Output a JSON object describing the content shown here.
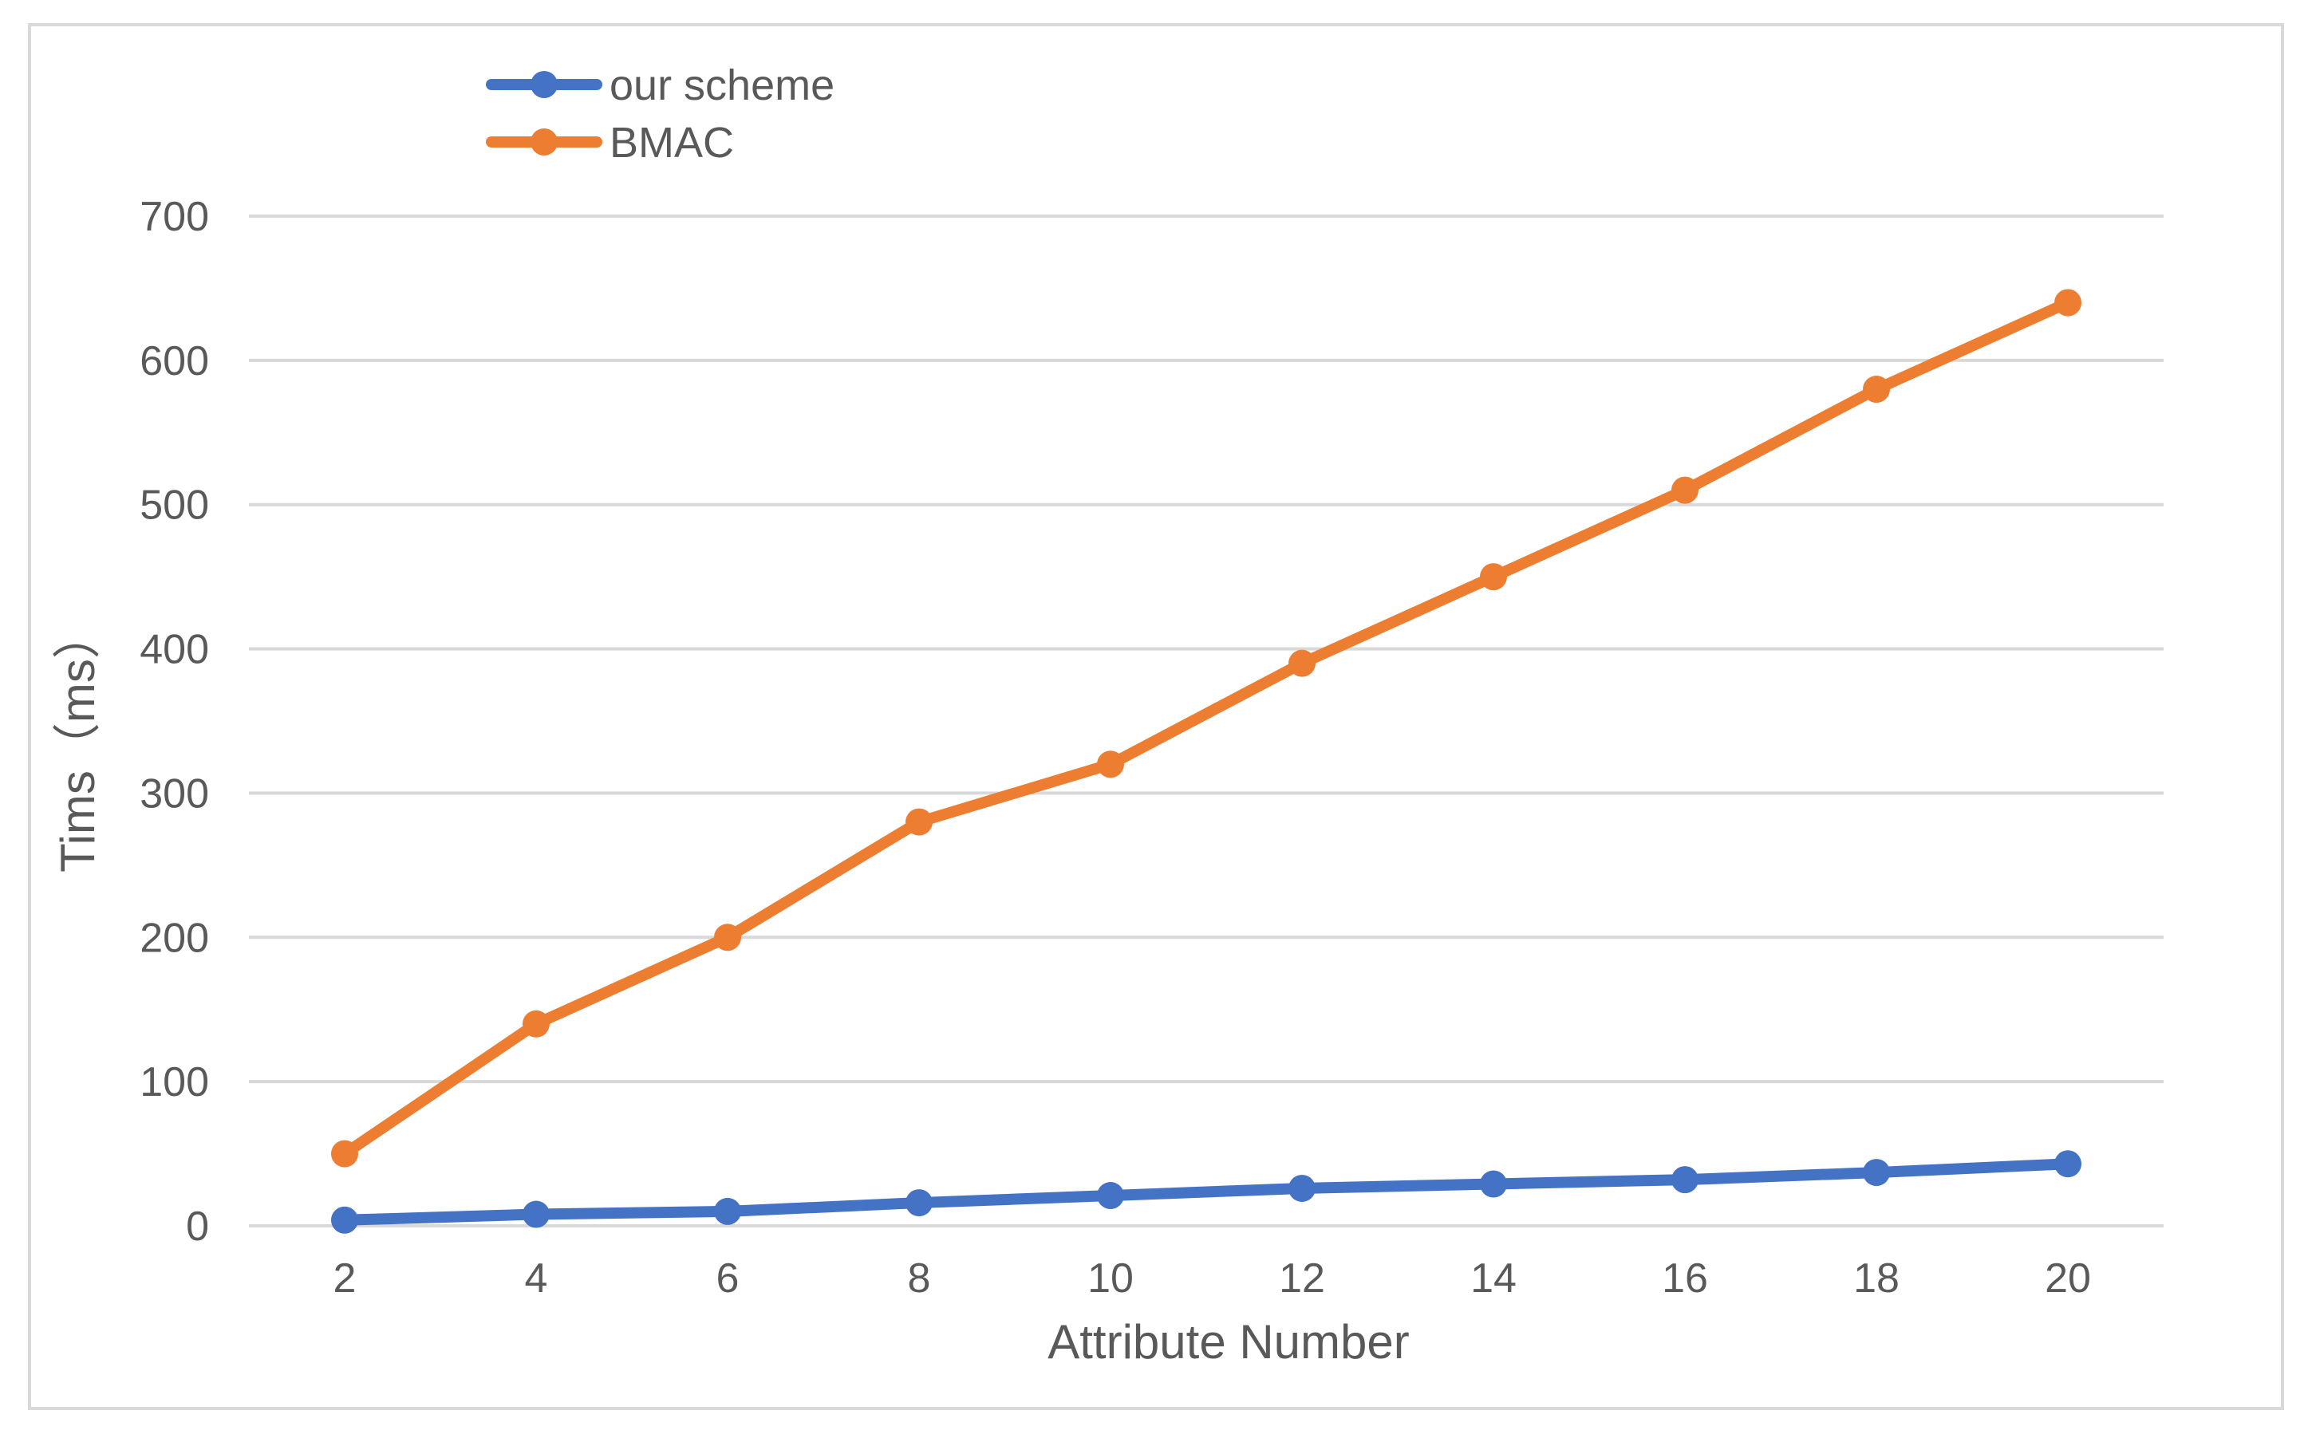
{
  "chart_data": {
    "type": "line",
    "title": "",
    "xlabel": "Attribute Number",
    "ylabel": "Tims（ms）",
    "categories": [
      "2",
      "4",
      "6",
      "8",
      "10",
      "12",
      "14",
      "16",
      "18",
      "20"
    ],
    "ylim": [
      0,
      700
    ],
    "yticks": [
      "0",
      "100",
      "200",
      "300",
      "400",
      "500",
      "600",
      "700"
    ],
    "grid": true,
    "legend_position": "top-left",
    "series": [
      {
        "name": "our scheme",
        "color": "#4472c4",
        "values": [
          4,
          8,
          10,
          16,
          21,
          26,
          29,
          32,
          37,
          43
        ]
      },
      {
        "name": "BMAC",
        "color": "#ed7d31",
        "values": [
          50,
          140,
          200,
          280,
          320,
          390,
          450,
          510,
          580,
          640
        ]
      }
    ]
  }
}
